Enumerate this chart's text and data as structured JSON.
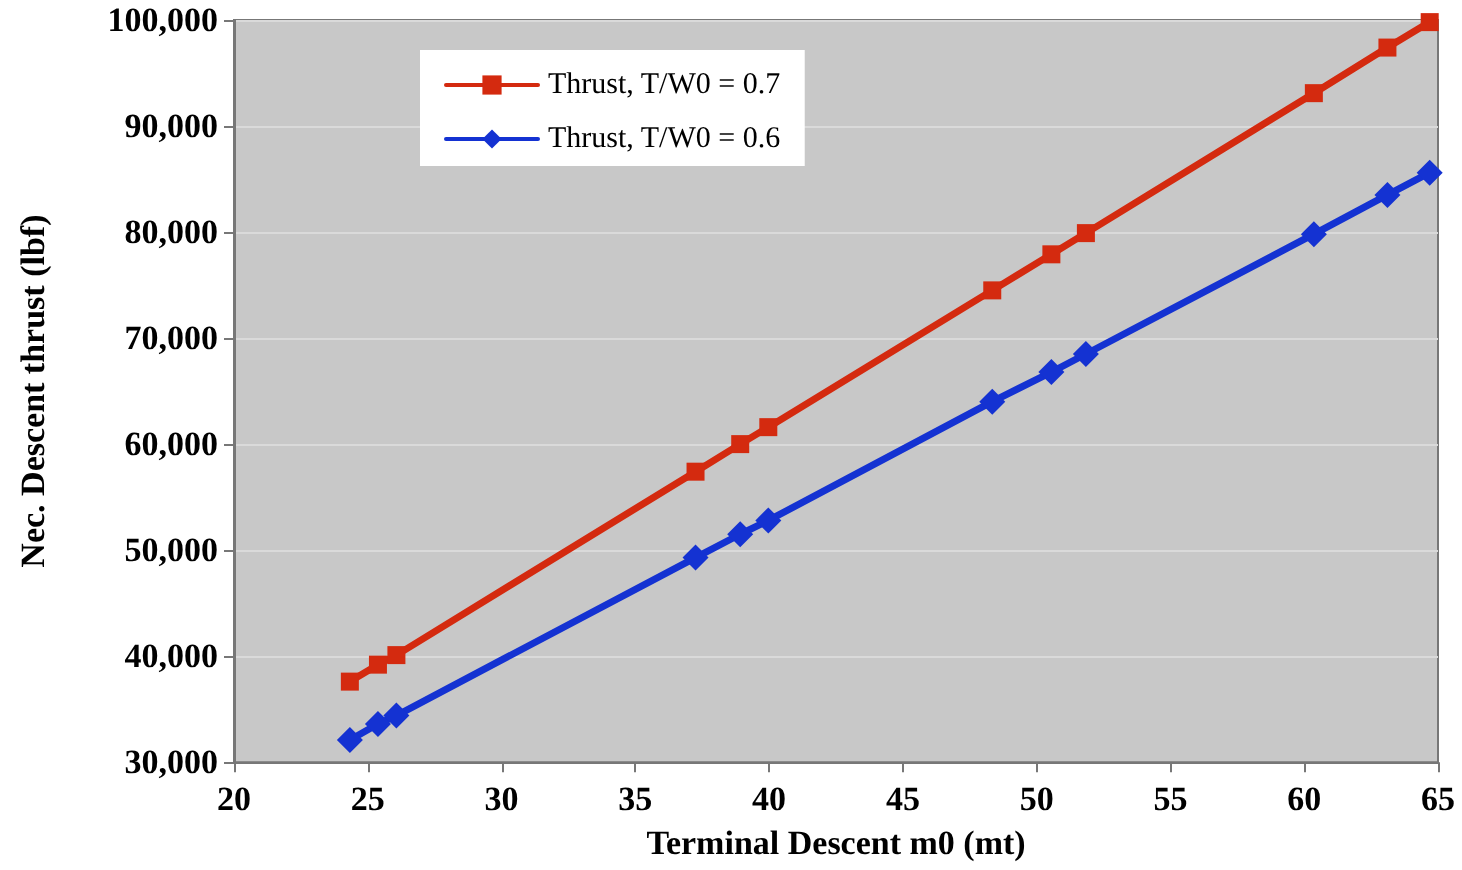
{
  "chart_data": {
    "type": "line",
    "xlabel": "Terminal Descent m0 (mt)",
    "ylabel": "Nec. Descent thrust (lbf)",
    "xlim": [
      20,
      65
    ],
    "xticks": [
      20,
      25,
      30,
      35,
      40,
      45,
      50,
      55,
      60,
      65
    ],
    "ylim": [
      30000,
      100000
    ],
    "yticks": [
      {
        "value": 30000,
        "label": "30,000"
      },
      {
        "value": 40000,
        "label": "40,000"
      },
      {
        "value": 50000,
        "label": "50,000"
      },
      {
        "value": 60000,
        "label": "60,000"
      },
      {
        "value": 70000,
        "label": "70,000"
      },
      {
        "value": 80000,
        "label": "80,000"
      },
      {
        "value": 90000,
        "label": "90,000"
      },
      {
        "value": 100000,
        "label": "100,000"
      }
    ],
    "grid": "y",
    "legend": "top left",
    "series": [
      {
        "name": "Thrust, T/W0 = 0.7",
        "color": "#d42a0f",
        "marker": "square",
        "x": [
          24.33,
          25.38,
          26.07,
          37.25,
          38.92,
          39.97,
          48.34,
          50.55,
          51.84,
          60.36,
          63.11,
          64.69
        ],
        "values": [
          37600,
          39200,
          40100,
          57400,
          60000,
          61600,
          74500,
          77900,
          79900,
          93100,
          97400,
          99800
        ]
      },
      {
        "name": "Thrust, T/W0 = 0.6",
        "color": "#1432d2",
        "marker": "diamond",
        "x": [
          24.33,
          25.38,
          26.07,
          37.25,
          38.92,
          39.97,
          48.34,
          50.55,
          51.84,
          60.36,
          63.11,
          64.69
        ],
        "values": [
          32100,
          33600,
          34400,
          49300,
          51500,
          52800,
          64000,
          66800,
          68500,
          79800,
          83500,
          85600
        ]
      }
    ]
  }
}
